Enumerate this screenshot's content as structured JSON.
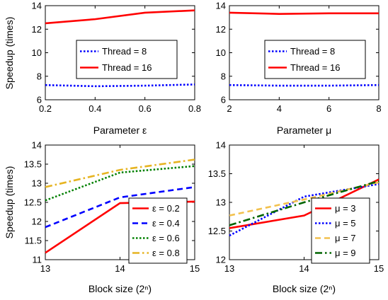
{
  "chart_data": [
    {
      "id": "tl",
      "type": "line",
      "xlabel": "Parameter ε",
      "ylabel": "Speedup (times)",
      "xlim": [
        0.2,
        0.8
      ],
      "ylim": [
        6,
        14
      ],
      "xticks": [
        "0.2",
        "0.4",
        "0.6",
        "0.8"
      ],
      "xtick_values": [
        0.2,
        0.4,
        0.6,
        0.8
      ],
      "yticks": [
        "6",
        "8",
        "10",
        "12",
        "14"
      ],
      "ytick_values": [
        6,
        8,
        10,
        12,
        14
      ],
      "legend_position": "center",
      "series": [
        {
          "name": "Thread = 8",
          "color": "#0000ff",
          "dash": "dotted",
          "x": [
            0.2,
            0.4,
            0.6,
            0.8
          ],
          "y": [
            7.25,
            7.15,
            7.2,
            7.3
          ]
        },
        {
          "name": "Thread = 16",
          "color": "#ff0000",
          "dash": "solid",
          "x": [
            0.2,
            0.4,
            0.6,
            0.8
          ],
          "y": [
            12.5,
            12.85,
            13.4,
            13.6
          ]
        }
      ]
    },
    {
      "id": "tr",
      "type": "line",
      "xlabel": "Parameter μ",
      "ylabel": "",
      "xlim": [
        2,
        8
      ],
      "ylim": [
        6,
        14
      ],
      "xticks": [
        "2",
        "4",
        "6",
        "8"
      ],
      "xtick_values": [
        2,
        4,
        6,
        8
      ],
      "yticks": [
        "6",
        "8",
        "10",
        "12",
        "14"
      ],
      "ytick_values": [
        6,
        8,
        10,
        12,
        14
      ],
      "legend_position": "center",
      "series": [
        {
          "name": "Thread = 8",
          "color": "#0000ff",
          "dash": "dotted",
          "x": [
            2,
            4,
            6,
            8
          ],
          "y": [
            7.25,
            7.2,
            7.2,
            7.25
          ]
        },
        {
          "name": "Thread = 16",
          "color": "#ff0000",
          "dash": "solid",
          "x": [
            2,
            4,
            6,
            8
          ],
          "y": [
            13.4,
            13.3,
            13.35,
            13.35
          ]
        }
      ]
    },
    {
      "id": "bl",
      "type": "line",
      "xlabel": "Block size (2ⁿ)",
      "ylabel": "Speedup (times)",
      "xlim": [
        13,
        15
      ],
      "ylim": [
        11,
        14
      ],
      "xticks": [
        "13",
        "14",
        "15"
      ],
      "xtick_values": [
        13,
        14,
        15
      ],
      "yticks": [
        "11",
        "11.5",
        "12",
        "12.5",
        "13",
        "13.5",
        "14"
      ],
      "ytick_values": [
        11,
        11.5,
        12,
        12.5,
        13,
        13.5,
        14
      ],
      "legend_position": "bottom-right",
      "series": [
        {
          "name": "ε = 0.2",
          "color": "#ff0000",
          "dash": "solid",
          "x": [
            13,
            14,
            15
          ],
          "y": [
            11.18,
            12.48,
            12.52
          ]
        },
        {
          "name": "ε = 0.4",
          "color": "#0000ff",
          "dash": "dashed",
          "x": [
            13,
            14,
            15
          ],
          "y": [
            11.85,
            12.63,
            12.9
          ]
        },
        {
          "name": "ε = 0.6",
          "color": "#008000",
          "dash": "dotted",
          "x": [
            13,
            14,
            15
          ],
          "y": [
            12.55,
            13.28,
            13.45
          ]
        },
        {
          "name": "ε = 0.8",
          "color": "#e6b422",
          "dash": "dashdot",
          "x": [
            13,
            14,
            15
          ],
          "y": [
            12.9,
            13.35,
            13.62
          ]
        }
      ]
    },
    {
      "id": "br",
      "type": "line",
      "xlabel": "Block  size (2ⁿ)",
      "ylabel": "",
      "xlim": [
        13,
        15
      ],
      "ylim": [
        12,
        14
      ],
      "xticks": [
        "13",
        "14",
        "15"
      ],
      "xtick_values": [
        13,
        14,
        15
      ],
      "yticks": [
        "12",
        "12.5",
        "13",
        "13.5",
        "14"
      ],
      "ytick_values": [
        12,
        12.5,
        13,
        13.5,
        14
      ],
      "legend_position": "bottom-right",
      "series": [
        {
          "name": "μ = 3",
          "color": "#ff0000",
          "dash": "solid",
          "x": [
            13,
            14,
            15
          ],
          "y": [
            12.55,
            12.77,
            13.4
          ]
        },
        {
          "name": "μ = 5",
          "color": "#0000ff",
          "dash": "dotted",
          "x": [
            13,
            14,
            15
          ],
          "y": [
            12.42,
            13.1,
            13.32
          ]
        },
        {
          "name": "μ = 7",
          "color": "#f2c14e",
          "dash": "dashed",
          "x": [
            13,
            14,
            15
          ],
          "y": [
            12.77,
            13.05,
            13.35
          ]
        },
        {
          "name": "μ = 9",
          "color": "#006400",
          "dash": "dashdot",
          "x": [
            13,
            14,
            15
          ],
          "y": [
            12.6,
            13.0,
            13.37
          ]
        }
      ]
    }
  ]
}
